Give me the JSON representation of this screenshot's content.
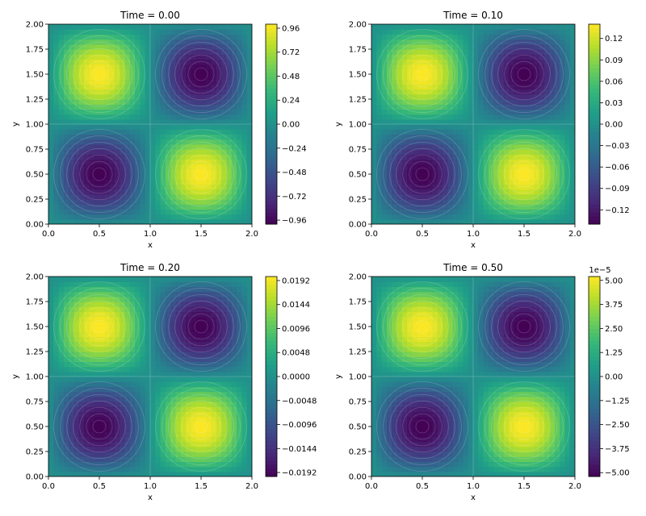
{
  "chart_data": [
    {
      "type": "heatmap",
      "title": "Time = 0.00",
      "xlabel": "x",
      "ylabel": "y",
      "xlim": [
        0,
        2
      ],
      "ylim": [
        0,
        2
      ],
      "xticks": [
        "0.0",
        "0.5",
        "1.0",
        "1.5",
        "2.0"
      ],
      "yticks": [
        "0.00",
        "0.25",
        "0.50",
        "0.75",
        "1.00",
        "1.25",
        "1.50",
        "1.75",
        "2.00"
      ],
      "field": "-sin(pi x) sin(pi y) scaled by amplitude",
      "amplitude": 1.0,
      "colorbar": {
        "range": [
          -1.0,
          1.0
        ],
        "offset_label": "",
        "ticks": [
          {
            "value": 0.96,
            "label": "0.96"
          },
          {
            "value": 0.72,
            "label": "0.72"
          },
          {
            "value": 0.48,
            "label": "0.48"
          },
          {
            "value": 0.24,
            "label": "0.24"
          },
          {
            "value": 0.0,
            "label": "0.00"
          },
          {
            "value": -0.24,
            "label": "−0.24"
          },
          {
            "value": -0.48,
            "label": "−0.48"
          },
          {
            "value": -0.72,
            "label": "−0.72"
          },
          {
            "value": -0.96,
            "label": "−0.96"
          }
        ]
      }
    },
    {
      "type": "heatmap",
      "title": "Time = 0.10",
      "xlabel": "x",
      "ylabel": "y",
      "xlim": [
        0,
        2
      ],
      "ylim": [
        0,
        2
      ],
      "xticks": [
        "0.0",
        "0.5",
        "1.0",
        "1.5",
        "2.0"
      ],
      "yticks": [
        "0.00",
        "0.25",
        "0.50",
        "0.75",
        "1.00",
        "1.25",
        "1.50",
        "1.75",
        "2.00"
      ],
      "field": "-sin(pi x) sin(pi y) scaled by amplitude",
      "amplitude": 0.14,
      "colorbar": {
        "range": [
          -0.14,
          0.14
        ],
        "offset_label": "",
        "ticks": [
          {
            "value": 0.12,
            "label": "0.12"
          },
          {
            "value": 0.09,
            "label": "0.09"
          },
          {
            "value": 0.06,
            "label": "0.06"
          },
          {
            "value": 0.03,
            "label": "0.03"
          },
          {
            "value": 0.0,
            "label": "0.00"
          },
          {
            "value": -0.03,
            "label": "−0.03"
          },
          {
            "value": -0.06,
            "label": "−0.06"
          },
          {
            "value": -0.09,
            "label": "−0.09"
          },
          {
            "value": -0.12,
            "label": "−0.12"
          }
        ]
      }
    },
    {
      "type": "heatmap",
      "title": "Time = 0.20",
      "xlabel": "x",
      "ylabel": "y",
      "xlim": [
        0,
        2
      ],
      "ylim": [
        0,
        2
      ],
      "xticks": [
        "0.0",
        "0.5",
        "1.0",
        "1.5",
        "2.0"
      ],
      "yticks": [
        "0.00",
        "0.25",
        "0.50",
        "0.75",
        "1.00",
        "1.25",
        "1.50",
        "1.75",
        "2.00"
      ],
      "field": "-sin(pi x) sin(pi y) scaled by amplitude",
      "amplitude": 0.02,
      "colorbar": {
        "range": [
          -0.02,
          0.02
        ],
        "offset_label": "",
        "ticks": [
          {
            "value": 0.0192,
            "label": "0.0192"
          },
          {
            "value": 0.0144,
            "label": "0.0144"
          },
          {
            "value": 0.0096,
            "label": "0.0096"
          },
          {
            "value": 0.0048,
            "label": "0.0048"
          },
          {
            "value": 0.0,
            "label": "0.0000"
          },
          {
            "value": -0.0048,
            "label": "−0.0048"
          },
          {
            "value": -0.0096,
            "label": "−0.0096"
          },
          {
            "value": -0.0144,
            "label": "−0.0144"
          },
          {
            "value": -0.0192,
            "label": "−0.0192"
          }
        ]
      }
    },
    {
      "type": "heatmap",
      "title": "Time = 0.50",
      "xlabel": "x",
      "ylabel": "y",
      "xlim": [
        0,
        2
      ],
      "ylim": [
        0,
        2
      ],
      "xticks": [
        "0.0",
        "0.5",
        "1.0",
        "1.5",
        "2.0"
      ],
      "yticks": [
        "0.00",
        "0.25",
        "0.50",
        "0.75",
        "1.00",
        "1.25",
        "1.50",
        "1.75",
        "2.00"
      ],
      "field": "-sin(pi x) sin(pi y) scaled by amplitude",
      "amplitude": 5.2,
      "colorbar": {
        "range": [
          -5.2,
          5.2
        ],
        "offset_label": "1e−5",
        "ticks": [
          {
            "value": 5.0,
            "label": "5.00"
          },
          {
            "value": 3.75,
            "label": "3.75"
          },
          {
            "value": 2.5,
            "label": "2.50"
          },
          {
            "value": 1.25,
            "label": "1.25"
          },
          {
            "value": 0.0,
            "label": "0.00"
          },
          {
            "value": -1.25,
            "label": "−1.25"
          },
          {
            "value": -2.5,
            "label": "−2.50"
          },
          {
            "value": -3.75,
            "label": "−3.75"
          },
          {
            "value": -5.0,
            "label": "−5.00"
          }
        ]
      }
    }
  ],
  "colors": {
    "viridis": [
      "#440154",
      "#482878",
      "#3e4989",
      "#31688e",
      "#26828e",
      "#1f9e89",
      "#35b779",
      "#6ece58",
      "#b5de2b",
      "#fde725"
    ]
  }
}
